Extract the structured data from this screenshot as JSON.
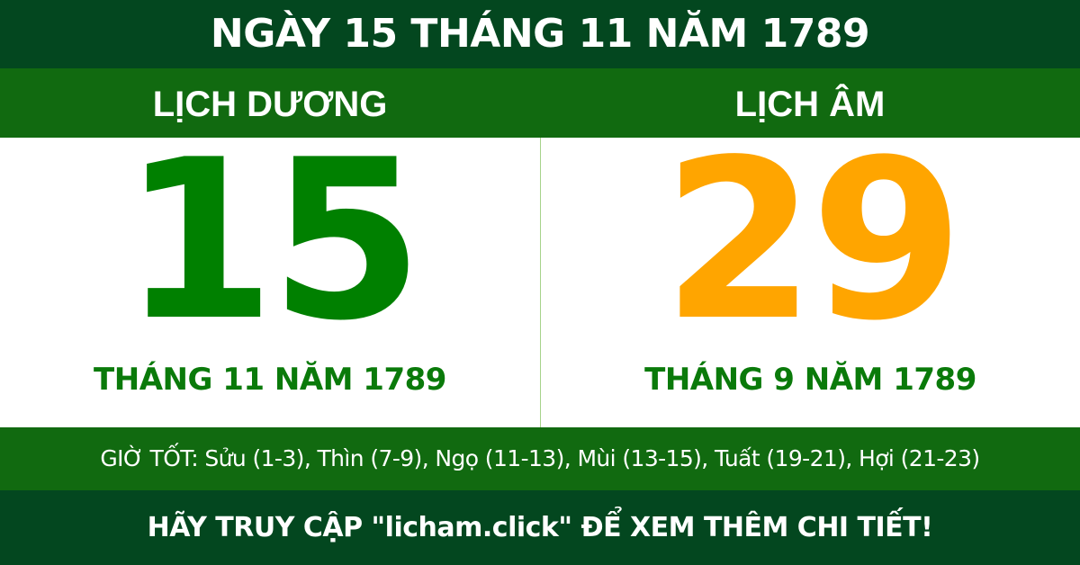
{
  "title": "NGÀY 15 THÁNG 11 NĂM 1789",
  "solar": {
    "label": "LỊCH DƯƠNG",
    "day": "15",
    "month_year": "THÁNG 11 NĂM 1789",
    "color": "#008000"
  },
  "lunar": {
    "label": "LỊCH ÂM",
    "day": "29",
    "month_year": "THÁNG 9 NĂM 1789",
    "color": "#FFA500"
  },
  "good_hours": "GIỜ TỐT: Sửu (1-3), Thìn (7-9), Ngọ (11-13), Mùi (13-15), Tuất (19-21), Hợi (21-23)",
  "footer": "HÃY TRUY CẬP \"licham.click\" ĐỂ XEM THÊM CHI TIẾT!",
  "colors": {
    "dark": "#03471f",
    "band": "#116a10"
  }
}
